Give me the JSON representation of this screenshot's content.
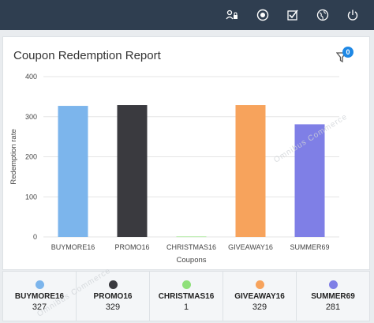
{
  "header": {
    "icons": [
      "lock-person-icon",
      "palette-icon",
      "checkbox-icon",
      "globe-icon",
      "power-icon"
    ]
  },
  "report": {
    "title": "Coupon Redemption Report",
    "filter_badge": "0"
  },
  "colors": {
    "topbar": "#2f3e50",
    "badge": "#1e88e5"
  },
  "chart_data": {
    "type": "bar",
    "categories": [
      "BUYMORE16",
      "PROMO16",
      "CHRISTMAS16",
      "GIVEAWAY16",
      "SUMMER69"
    ],
    "values": [
      327,
      329,
      1,
      329,
      281
    ],
    "colors": [
      "#7cb5ec",
      "#3a3a3f",
      "#8fe07a",
      "#f7a35c",
      "#7f7fe6"
    ],
    "xlabel": "Coupons",
    "ylabel": "Redemption rate",
    "ylim": [
      0,
      400
    ],
    "yticks": [
      0,
      100,
      200,
      300,
      400
    ],
    "grid": true
  },
  "legend": [
    {
      "name": "BUYMORE16",
      "value": "327",
      "color": "#7cb5ec"
    },
    {
      "name": "PROMO16",
      "value": "329",
      "color": "#3a3a3f"
    },
    {
      "name": "CHRISTMAS16",
      "value": "1",
      "color": "#8fe07a"
    },
    {
      "name": "GIVEAWAY16",
      "value": "329",
      "color": "#f7a35c"
    },
    {
      "name": "SUMMER69",
      "value": "281",
      "color": "#7f7fe6"
    }
  ]
}
